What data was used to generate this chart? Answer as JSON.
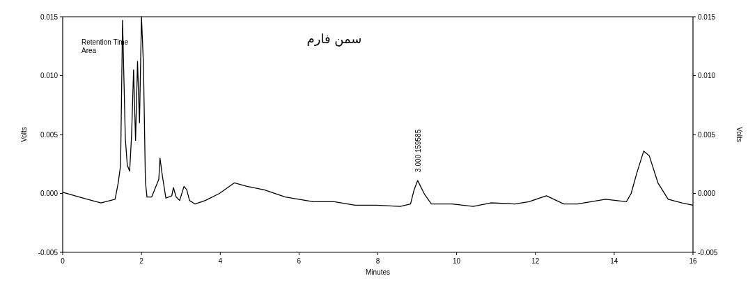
{
  "chart_data": {
    "type": "line",
    "title": "سمن فارم",
    "xlabel": "Minutes",
    "ylabel": "Volts",
    "y2label": "Volts",
    "x": [
      0,
      0.53,
      0.97,
      1.33,
      1.41,
      1.47,
      1.52,
      1.59,
      1.64,
      1.7,
      1.75,
      1.8,
      1.85,
      1.9,
      1.95,
      2.0,
      2.05,
      2.1,
      2.14,
      2.26,
      2.44,
      2.47,
      2.53,
      2.62,
      2.77,
      2.81,
      2.88,
      2.97,
      3.08,
      3.15,
      3.22,
      3.36,
      3.62,
      3.98,
      4.36,
      4.68,
      5.12,
      5.65,
      6.36,
      6.89,
      7.42,
      7.95,
      8.57,
      8.83,
      8.92,
      9.01,
      9.19,
      9.36,
      9.89,
      10.42,
      10.87,
      11.48,
      11.84,
      12.28,
      12.72,
      13.07,
      13.78,
      14.31,
      14.43,
      14.58,
      14.75,
      14.89,
      15.11,
      15.37,
      15.72,
      16
    ],
    "series": [
      {
        "color": "#000000",
        "values": [
          0.0001,
          -0.0004,
          -0.0008,
          -0.0005,
          0.0009,
          0.0024,
          0.0147,
          0.0047,
          0.0024,
          0.0019,
          0.005,
          0.0105,
          0.0045,
          0.0112,
          0.006,
          0.015,
          0.011,
          0.001,
          -0.0003,
          -0.0003,
          0.0012,
          0.003,
          0.0015,
          -0.0004,
          -0.0002,
          0.0005,
          -0.0003,
          -0.0006,
          0.0006,
          0.0003,
          -0.0006,
          -0.0009,
          -0.0006,
          0,
          0.0009,
          0.0006,
          0.0003,
          -0.0003,
          -0.0007,
          -0.0007,
          -0.001,
          -0.001,
          -0.0011,
          -0.0009,
          0.0003,
          0.0011,
          -0.0001,
          -0.0009,
          -0.0009,
          -0.0011,
          -0.0008,
          -0.0009,
          -0.0007,
          -0.0002,
          -0.0009,
          -0.0009,
          -0.0005,
          -0.0007,
          0,
          0.0018,
          0.0036,
          0.0032,
          0.0009,
          -0.0005,
          -0.0008,
          -0.001
        ]
      }
    ],
    "xlim": [
      0,
      16
    ],
    "xticks": [
      0,
      2,
      4,
      6,
      8,
      10,
      12,
      14,
      16
    ],
    "ylim": [
      -0.005,
      0.015
    ],
    "yticks": [
      {
        "value": -0.005,
        "label": "-0.005"
      },
      {
        "value": 0,
        "label": "0.000"
      },
      {
        "value": 0.005,
        "label": "0.005"
      },
      {
        "value": 0.01,
        "label": "0.010"
      },
      {
        "value": 0.015,
        "label": "0.015"
      }
    ],
    "y2lim": [
      -0.005,
      0.015
    ],
    "y2ticks": [
      {
        "value": -0.005,
        "label": "-0.005"
      },
      {
        "value": 0,
        "label": "0.000"
      },
      {
        "value": 0.005,
        "label": "0.005"
      },
      {
        "value": 0.01,
        "label": "0.010"
      },
      {
        "value": 0.015,
        "label": "0.015"
      }
    ],
    "annotations": [
      "Retention Time",
      "Area",
      {
        "text": "3.000 159585",
        "x": 9.01,
        "y": 0.0011
      }
    ],
    "grid": false,
    "marker": "none",
    "line_style": "solid"
  }
}
